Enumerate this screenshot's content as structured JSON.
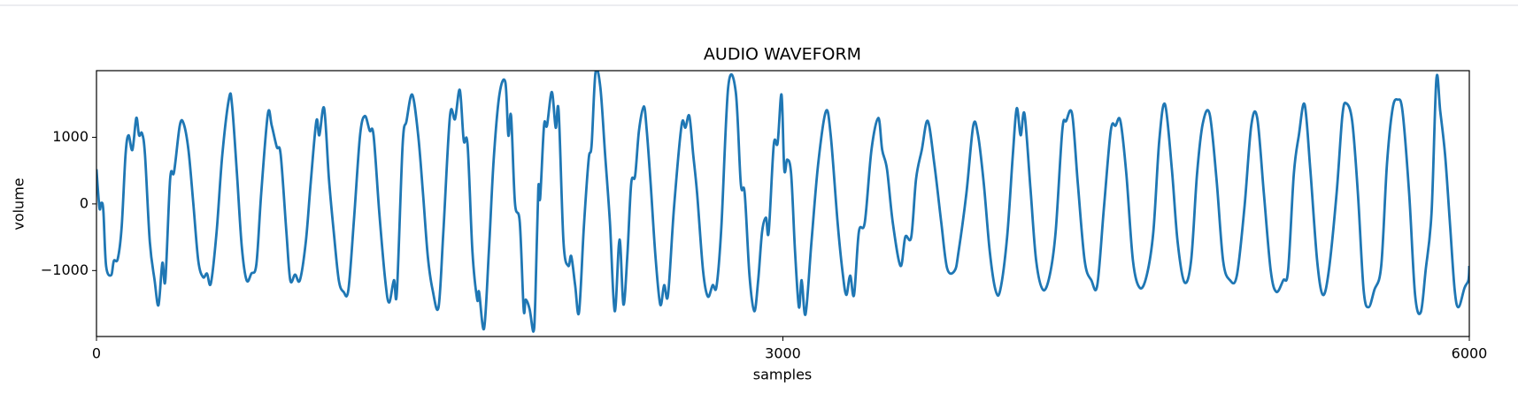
{
  "chart_data": {
    "type": "line",
    "title": "AUDIO WAVEFORM",
    "x_label": "samples",
    "y_label": "volume",
    "color": "#1f77b4",
    "xlim": [
      0,
      6000
    ],
    "xticks": [
      0,
      3000,
      6000
    ],
    "ylim": [
      -1990,
      2000
    ],
    "yticks": [
      {
        "value": -1000,
        "label": "−1000"
      },
      0,
      1000
    ],
    "x": [
      0,
      13,
      21,
      30,
      42,
      64,
      76,
      93,
      110,
      127,
      140,
      157,
      174,
      186,
      199,
      212,
      233,
      254,
      271,
      288,
      301,
      322,
      339,
      364,
      381,
      402,
      423,
      445,
      466,
      483,
      500,
      525,
      550,
      580,
      593,
      614,
      635,
      656,
      677,
      699,
      720,
      749,
      766,
      788,
      805,
      830,
      847,
      868,
      889,
      915,
      936,
      961,
      974,
      995,
      1016,
      1037,
      1059,
      1080,
      1101,
      1126,
      1152,
      1173,
      1194,
      1211,
      1236,
      1262,
      1279,
      1300,
      1313,
      1338,
      1355,
      1380,
      1406,
      1427,
      1448,
      1469,
      1495,
      1516,
      1545,
      1567,
      1588,
      1605,
      1622,
      1643,
      1664,
      1672,
      1694,
      1715,
      1736,
      1761,
      1787,
      1800,
      1812,
      1829,
      1850,
      1867,
      1876,
      1893,
      1910,
      1918,
      1931,
      1939,
      1956,
      1969,
      1990,
      2007,
      2020,
      2041,
      2062,
      2075,
      2092,
      2109,
      2130,
      2151,
      2164,
      2181,
      2202,
      2223,
      2244,
      2265,
      2286,
      2303,
      2320,
      2337,
      2354,
      2371,
      2392,
      2405,
      2422,
      2443,
      2464,
      2481,
      2498,
      2524,
      2557,
      2574,
      2591,
      2608,
      2625,
      2651,
      2672,
      2693,
      2710,
      2731,
      2761,
      2794,
      2816,
      2833,
      2854,
      2875,
      2892,
      2909,
      2926,
      2938,
      2960,
      2977,
      2994,
      3006,
      3019,
      3036,
      3053,
      3070,
      3082,
      3099,
      3125,
      3154,
      3188,
      3209,
      3239,
      3260,
      3277,
      3294,
      3311,
      3332,
      3358,
      3387,
      3417,
      3434,
      3455,
      3480,
      3514,
      3535,
      3561,
      3582,
      3607,
      3633,
      3662,
      3692,
      3718,
      3751,
      3768,
      3802,
      3832,
      3853,
      3878,
      3904,
      3929,
      3950,
      3980,
      4005,
      4022,
      4039,
      4056,
      4082,
      4107,
      4137,
      4166,
      4192,
      4221,
      4238,
      4264,
      4289,
      4319,
      4348,
      4374,
      4403,
      4433,
      4454,
      4475,
      4501,
      4530,
      4560,
      4590,
      4619,
      4645,
      4670,
      4700,
      4725,
      4755,
      4784,
      4810,
      4835,
      4865,
      4895,
      4924,
      4954,
      4984,
      5017,
      5047,
      5073,
      5102,
      5132,
      5157,
      5187,
      5208,
      5233,
      5255,
      5280,
      5305,
      5335,
      5360,
      5386,
      5420,
      5445,
      5462,
      5488,
      5513,
      5538,
      5560,
      5585,
      5615,
      5640,
      5665,
      5687,
      5708,
      5737,
      5763,
      5788,
      5809,
      5835,
      5856,
      5873,
      5894,
      5915,
      5936,
      5953,
      5979,
      5996,
      6000
    ],
    "values": [
      520,
      -60,
      15,
      -100,
      -930,
      -1070,
      -855,
      -825,
      -350,
      740,
      1030,
      810,
      1290,
      1030,
      1060,
      740,
      -565,
      -1145,
      -1520,
      -885,
      -1145,
      375,
      480,
      1175,
      1205,
      810,
      15,
      -855,
      -1100,
      -1045,
      -1190,
      -420,
      740,
      1595,
      1465,
      450,
      -640,
      -1145,
      -1045,
      -900,
      160,
      1350,
      1175,
      855,
      740,
      -420,
      -1145,
      -1060,
      -1145,
      -565,
      305,
      1245,
      1030,
      1435,
      375,
      -420,
      -1145,
      -1320,
      -1290,
      -205,
      1030,
      1320,
      1100,
      1030,
      -130,
      -1145,
      -1480,
      -1145,
      -1320,
      885,
      1245,
      1640,
      1030,
      160,
      -785,
      -1290,
      -1550,
      -420,
      1320,
      1275,
      1710,
      955,
      885,
      -710,
      -1435,
      -1320,
      -1870,
      -710,
      665,
      1640,
      1825,
      1030,
      1320,
      15,
      -275,
      -1580,
      -1435,
      -1580,
      -1915,
      -1435,
      230,
      85,
      1175,
      1175,
      1680,
      1145,
      1390,
      -565,
      -930,
      -785,
      -1220,
      -1625,
      -350,
      665,
      885,
      1970,
      1755,
      740,
      -275,
      -1610,
      -535,
      -1510,
      -785,
      305,
      420,
      1100,
      1465,
      1100,
      305,
      -785,
      -1510,
      -1220,
      -1365,
      -60,
      1175,
      1145,
      1320,
      740,
      160,
      -1000,
      -1390,
      -1220,
      -1235,
      -350,
      1755,
      1680,
      305,
      160,
      -1075,
      -1610,
      -1145,
      -420,
      -205,
      -420,
      885,
      915,
      1640,
      520,
      665,
      450,
      -710,
      -1550,
      -1145,
      -1655,
      -565,
      595,
      1390,
      1030,
      -275,
      -1000,
      -1365,
      -1075,
      -1365,
      -420,
      -275,
      810,
      1290,
      810,
      520,
      -275,
      -930,
      -495,
      -495,
      375,
      810,
      1245,
      595,
      -275,
      -970,
      -1000,
      -710,
      160,
      1175,
      1030,
      305,
      -710,
      -1290,
      -1290,
      -495,
      740,
      1435,
      1030,
      1350,
      230,
      -855,
      -1290,
      -1075,
      -420,
      1100,
      1245,
      1350,
      305,
      -855,
      -1145,
      -1220,
      -60,
      1100,
      1175,
      1245,
      450,
      -855,
      -1260,
      -1075,
      -420,
      955,
      1495,
      520,
      -565,
      -1175,
      -855,
      450,
      1205,
      1350,
      375,
      -855,
      -1145,
      -1075,
      -60,
      1175,
      1290,
      160,
      -1000,
      -1320,
      -1145,
      -1000,
      450,
      1030,
      1495,
      520,
      -855,
      -1365,
      -1000,
      160,
      1320,
      1510,
      1245,
      160,
      -1290,
      -1550,
      -1290,
      -930,
      595,
      1435,
      1565,
      1390,
      160,
      -1365,
      -1625,
      -1000,
      -130,
      1870,
      1390,
      740,
      -275,
      -1290,
      -1550,
      -1260,
      -1145,
      -930
    ]
  }
}
